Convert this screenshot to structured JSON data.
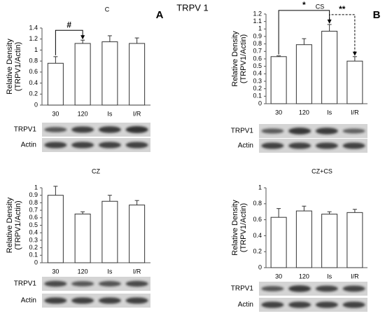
{
  "figure": {
    "title": "TRPV 1",
    "blot_labels": [
      "TRPV1",
      "Actin"
    ]
  },
  "chart_data": [
    {
      "type": "bar",
      "panel": "A",
      "title": "C",
      "ylabel": [
        "Relative Density",
        "(TRPV1/Actin)"
      ],
      "categories": [
        "30",
        "120",
        "Is",
        "I/R"
      ],
      "values": [
        0.76,
        1.12,
        1.15,
        1.12
      ],
      "errors": [
        0.12,
        0.06,
        0.11,
        0.1
      ],
      "color": "#ffffff",
      "ylim": [
        0,
        1.4
      ],
      "yticks": [
        0,
        0.2,
        0.4,
        0.6,
        0.8,
        1,
        1.2,
        1.4
      ],
      "annotations": [
        {
          "text": "#",
          "between": [
            "30",
            "120"
          ],
          "style": "solid"
        }
      ]
    },
    {
      "type": "bar",
      "panel": "B",
      "title": "CS",
      "ylabel": [
        "Relative Density",
        "(TRPV1/Actin)"
      ],
      "categories": [
        "30",
        "120",
        "Is",
        "I/R"
      ],
      "values": [
        0.63,
        0.79,
        0.97,
        0.57
      ],
      "errors": [
        0.01,
        0.08,
        0.09,
        0.06
      ],
      "color": "#ffffff",
      "ylim": [
        0,
        1.2
      ],
      "yticks": [
        0,
        0.1,
        0.2,
        0.3,
        0.4,
        0.5,
        0.6,
        0.7,
        0.8,
        0.9,
        1,
        1.1,
        1.2
      ],
      "annotations": [
        {
          "text": "*",
          "between": [
            "30",
            "Is"
          ],
          "style": "solid"
        },
        {
          "text": "**",
          "between": [
            "Is",
            "I/R"
          ],
          "style": "dashed"
        }
      ]
    },
    {
      "type": "bar",
      "title": "CZ",
      "ylabel": [
        "Relative Density",
        "(TRPV1/Actin)"
      ],
      "categories": [
        "30",
        "120",
        "Is",
        "I/R"
      ],
      "values": [
        0.9,
        0.65,
        0.82,
        0.77
      ],
      "errors": [
        0.12,
        0.03,
        0.08,
        0.06
      ],
      "color": "#ffffff",
      "ylim": [
        0,
        1
      ],
      "yticks": [
        0,
        0.1,
        0.2,
        0.3,
        0.4,
        0.5,
        0.6,
        0.7,
        0.8,
        0.9,
        1
      ]
    },
    {
      "type": "bar",
      "title": "CZ+CS",
      "ylabel": [
        "Relative Density",
        "(TRPV1/Actin)"
      ],
      "categories": [
        "30",
        "120",
        "Is",
        "I/R"
      ],
      "values": [
        0.63,
        0.71,
        0.67,
        0.69
      ],
      "errors": [
        0.11,
        0.06,
        0.03,
        0.04
      ],
      "color": "#ffffff",
      "ylim": [
        0,
        1
      ],
      "yticks": [
        0,
        0.2,
        0.4,
        0.6,
        0.8,
        1
      ]
    }
  ]
}
